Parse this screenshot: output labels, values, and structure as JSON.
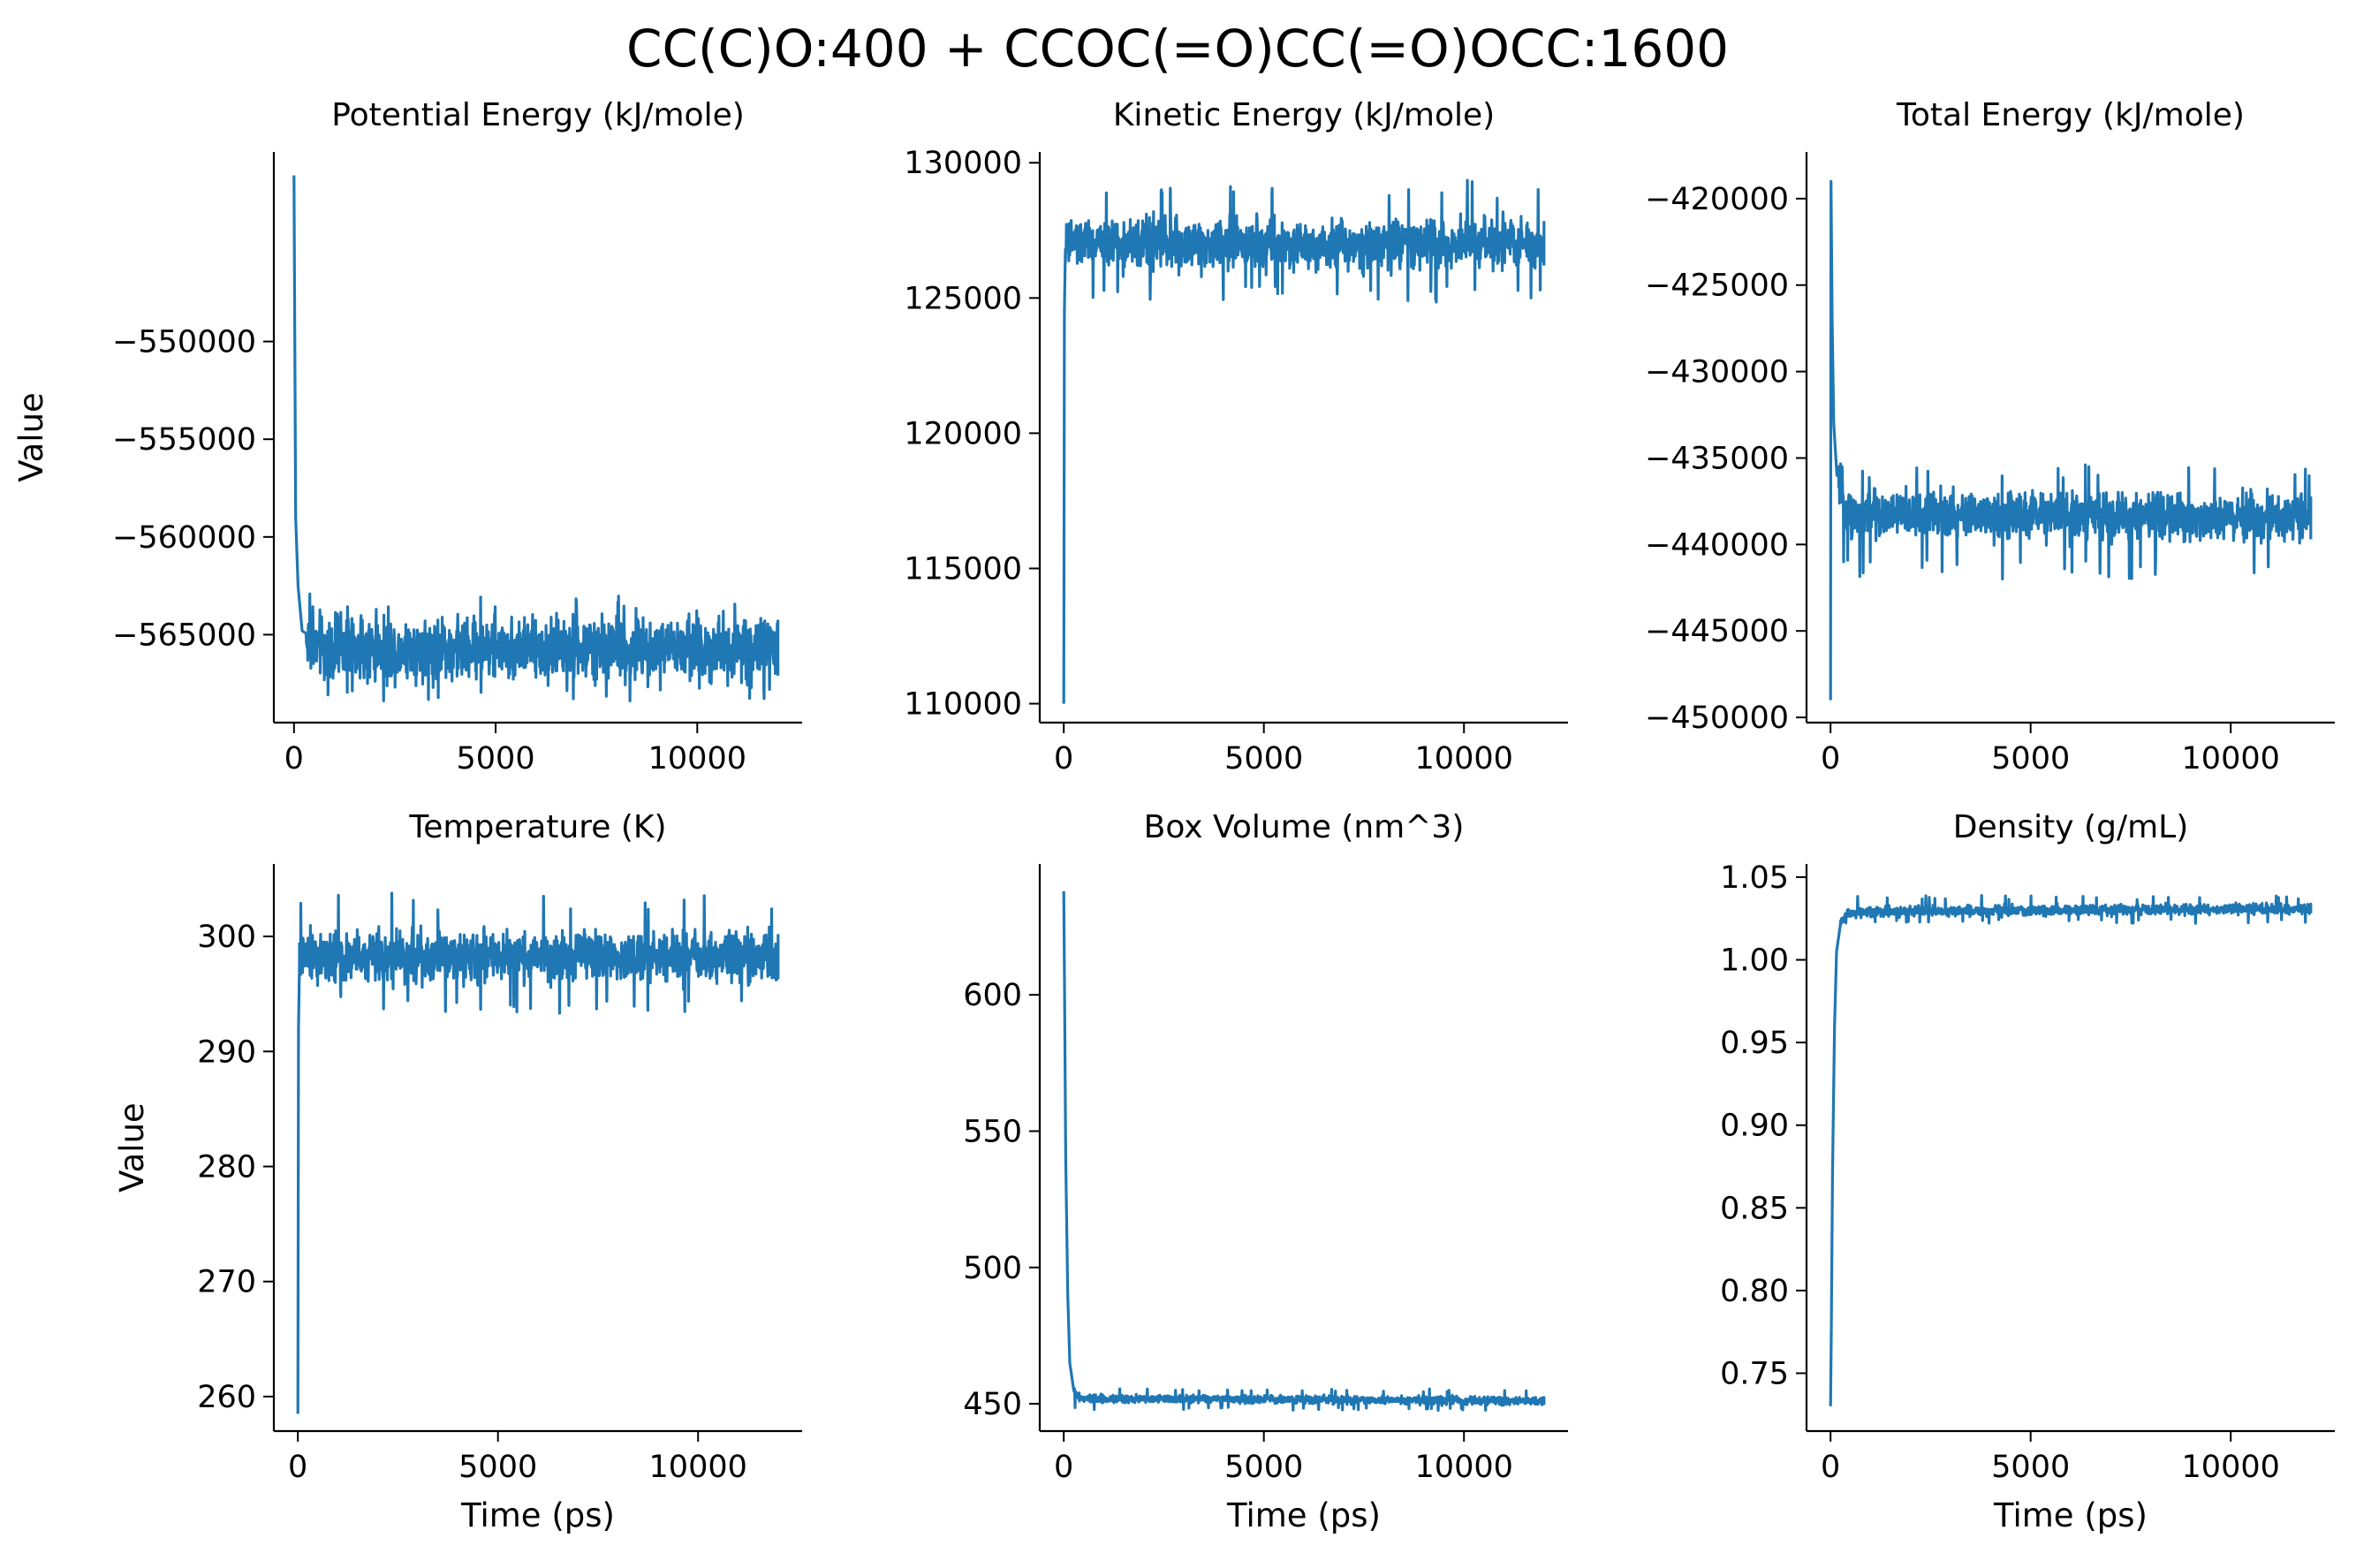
{
  "figure": {
    "title": "CC(C)O:400 + CCOC(=O)CC(=O)OCC:1600",
    "line_color": "#1f77b4"
  },
  "chart_data": [
    {
      "type": "line",
      "title": "Potential Energy (kJ/mole)",
      "xlabel": "",
      "ylabel": "Value",
      "xlim": [
        -500,
        12600
      ],
      "ylim": [
        -569500,
        -540300
      ],
      "xticks": [
        0,
        5000,
        10000
      ],
      "xtick_labels": [
        "0",
        "5000",
        "10000"
      ],
      "yticks": [
        -550000,
        -555000,
        -560000,
        -565000
      ],
      "ytick_labels": [
        "−550000",
        "−555000",
        "−560000",
        "−565000"
      ],
      "grid": false,
      "series_points": {
        "x": [
          0,
          40,
          100,
          200,
          400,
          800,
          12000
        ],
        "y": [
          -541500,
          -559000,
          -562500,
          -564800,
          -565600,
          -565700,
          -565700
        ]
      },
      "plateau": {
        "start": 300,
        "end": 12000,
        "mean": -565700,
        "band": 1400,
        "max": -562800,
        "min": -568400
      }
    },
    {
      "type": "line",
      "title": "Kinetic Energy (kJ/mole)",
      "xlabel": "",
      "ylabel": "",
      "xlim": [
        -600,
        12600
      ],
      "ylim": [
        109300,
        130400
      ],
      "xticks": [
        0,
        5000,
        10000
      ],
      "xtick_labels": [
        "0",
        "5000",
        "10000"
      ],
      "yticks": [
        110000,
        115000,
        120000,
        125000,
        130000
      ],
      "ytick_labels": [
        "110000",
        "115000",
        "120000",
        "125000",
        "130000"
      ],
      "grid": false,
      "series_points": {
        "x": [
          0,
          15,
          40,
          100,
          12000
        ],
        "y": [
          110000,
          124500,
          126800,
          127000,
          127000
        ]
      },
      "plateau": {
        "start": 40,
        "end": 12000,
        "mean": 127000,
        "band": 800,
        "max": 129400,
        "min": 124800
      }
    },
    {
      "type": "line",
      "title": "Total Energy (kJ/mole)",
      "xlabel": "",
      "ylabel": "",
      "xlim": [
        -600,
        12600
      ],
      "ylim": [
        -450300,
        -417300
      ],
      "xticks": [
        0,
        5000,
        10000
      ],
      "xtick_labels": [
        "0",
        "5000",
        "10000"
      ],
      "yticks": [
        -420000,
        -425000,
        -430000,
        -435000,
        -440000,
        -445000,
        -450000
      ],
      "ytick_labels": [
        "−420000",
        "−425000",
        "−430000",
        "−435000",
        "−440000",
        "−445000",
        "−450000"
      ],
      "grid": false,
      "series_points": {
        "x": [
          0,
          6,
          12,
          40,
          80,
          160,
          400,
          12000
        ],
        "y": [
          -449000,
          -430000,
          -419000,
          -427000,
          -433000,
          -436000,
          -438200,
          -438500
        ]
      },
      "plateau": {
        "start": 200,
        "end": 12000,
        "mean": -438500,
        "band": 1200,
        "max": -435300,
        "min": -442000
      }
    },
    {
      "type": "line",
      "title": "Temperature (K)",
      "xlabel": "Time (ps)",
      "ylabel": "Value",
      "xlim": [
        -600,
        12600
      ],
      "ylim": [
        257000,
        306300
      ],
      "xticks": [
        0,
        5000,
        10000
      ],
      "xtick_labels": [
        "0",
        "5000",
        "10000"
      ],
      "yticks": [
        260,
        270,
        280,
        290,
        300
      ],
      "ytick_labels": [
        "260",
        "270",
        "280",
        "290",
        "300"
      ],
      "grid": false,
      "scale": 1000,
      "series_points": {
        "x": [
          0,
          15,
          40,
          100,
          12000
        ],
        "y": [
          258500,
          292000,
          297500,
          298200,
          298200
        ]
      },
      "plateau": {
        "start": 40,
        "end": 12000,
        "mean": 298200,
        "band": 1900,
        "max": 303900,
        "min": 293300
      }
    },
    {
      "type": "line",
      "title": "Box Volume (nm^3)",
      "xlabel": "Time (ps)",
      "ylabel": "",
      "xlim": [
        -600,
        12600
      ],
      "ylim": [
        440,
        648
      ],
      "xticks": [
        0,
        5000,
        10000
      ],
      "xtick_labels": [
        "0",
        "5000",
        "10000"
      ],
      "yticks": [
        450,
        500,
        550,
        600
      ],
      "ytick_labels": [
        "450",
        "500",
        "550",
        "600"
      ],
      "grid": false,
      "series_points": {
        "x": [
          0,
          20,
          50,
          100,
          150,
          250,
          400,
          12000
        ],
        "y": [
          638,
          600,
          540,
          490,
          465,
          455,
          452,
          451
        ]
      },
      "plateau": {
        "start": 250,
        "end": 12000,
        "mean": 451,
        "band": 1.3,
        "max": 455.5,
        "min": 447.5
      }
    },
    {
      "type": "line",
      "title": "Density (g/mL)",
      "xlabel": "Time (ps)",
      "ylabel": "",
      "xlim": [
        -600,
        12600
      ],
      "ylim": [
        0.715,
        1.058
      ],
      "xticks": [
        0,
        5000,
        10000
      ],
      "xtick_labels": [
        "0",
        "5000",
        "10000"
      ],
      "yticks": [
        0.75,
        0.8,
        0.85,
        0.9,
        0.95,
        1.0,
        1.05
      ],
      "ytick_labels": [
        "0.75",
        "0.80",
        "0.85",
        "0.90",
        "0.95",
        "1.00",
        "1.05"
      ],
      "grid": false,
      "series_points": {
        "x": [
          0,
          20,
          50,
          100,
          150,
          250,
          400,
          12000
        ],
        "y": [
          0.73,
          0.78,
          0.87,
          0.96,
          1.005,
          1.022,
          1.029,
          1.031
        ]
      },
      "plateau": {
        "start": 250,
        "end": 12000,
        "mean": 1.031,
        "band": 0.0028,
        "max": 1.039,
        "min": 1.022
      }
    }
  ]
}
